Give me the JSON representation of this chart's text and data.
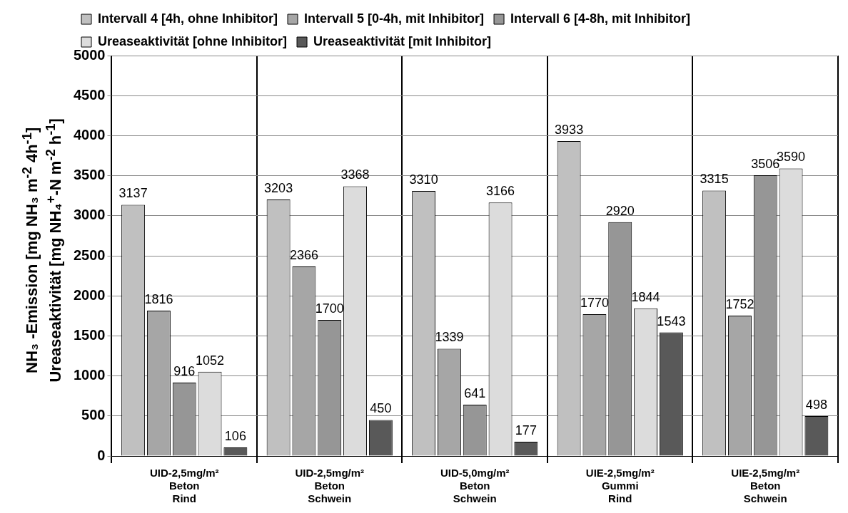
{
  "chart_data": {
    "type": "bar",
    "categories": [
      "UID-2,5mg/m²\nBeton\nRind",
      "UID-2,5mg/m²\nBeton\nSchwein",
      "UID-5,0mg/m²\nBeton\nSchwein",
      "UIE-2,5mg/m²\nGummi\nRind",
      "UIE-2,5mg/m²\nBeton\nSchwein"
    ],
    "ylabel": "NH₃ -Emission [mg NH₃ m$^{-2}$ 4h$^{-1}$]\nUreaseaktivität [mg NH₄$^{+}$-N m$^{-2}$ h$^{-1}$]",
    "series": [
      {
        "name": "Intervall 4 [4h, ohne Inhibitor]",
        "color": "#c0c0c0",
        "values": [
          3137,
          3203,
          3310,
          3933,
          3315
        ]
      },
      {
        "name": "Intervall 5 [0-4h, mit Inhibitor]",
        "color": "#a6a6a6",
        "values": [
          1816,
          2366,
          1339,
          1770,
          1752
        ]
      },
      {
        "name": "Intervall 6 [4-8h, mit Inhibitor]",
        "color": "#969696",
        "values": [
          916,
          1700,
          641,
          2920,
          3506
        ]
      },
      {
        "name": "Ureaseaktivität [ohne Inhibitor]",
        "color": "#dcdcdc",
        "values": [
          1052,
          3368,
          3166,
          1844,
          3590
        ]
      },
      {
        "name": "Ureaseaktivität [mit Inhibitor]",
        "color": "#595959",
        "values": [
          106,
          450,
          177,
          1543,
          498
        ]
      }
    ],
    "ylim": [
      0,
      5000
    ],
    "yticks": [
      0,
      500,
      1000,
      1500,
      2000,
      2500,
      3000,
      3500,
      4000,
      4500,
      5000
    ],
    "grid": "y",
    "legend": "top",
    "data_labels": true
  }
}
